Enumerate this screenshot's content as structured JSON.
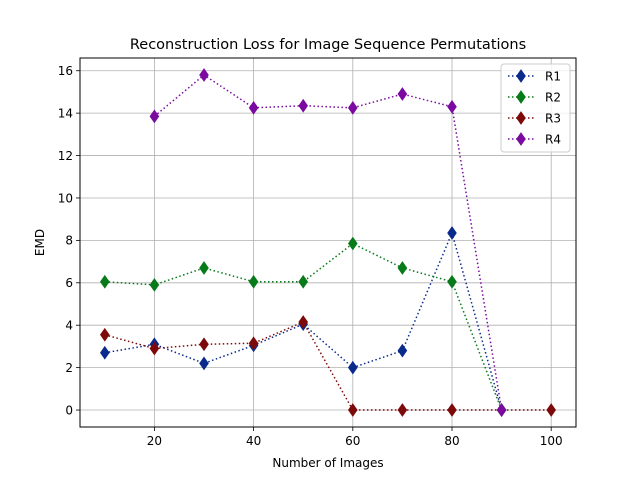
{
  "chart_data": {
    "type": "line",
    "title": "Reconstruction Loss for Image Sequence Permutations",
    "xlabel": "Number of Images",
    "ylabel": "EMD",
    "xlim": [
      5,
      105
    ],
    "ylim": [
      -0.8,
      16.6
    ],
    "xticks": [
      20,
      40,
      60,
      80,
      100
    ],
    "yticks": [
      0,
      2,
      4,
      6,
      8,
      10,
      12,
      14,
      16
    ],
    "grid": true,
    "legend": "top-right",
    "marker": "diamond",
    "linestyle": "dotted",
    "series": [
      {
        "name": "R1",
        "color": "#0b2b8c",
        "x": [
          10,
          20,
          30,
          40,
          50,
          60,
          70,
          80,
          90
        ],
        "y": [
          2.7,
          3.1,
          2.2,
          3.05,
          4.05,
          2.0,
          2.8,
          8.35,
          0.0
        ]
      },
      {
        "name": "R2",
        "color": "#077a1a",
        "x": [
          10,
          20,
          30,
          40,
          50,
          60,
          70,
          80,
          90
        ],
        "y": [
          6.05,
          5.9,
          6.7,
          6.05,
          6.05,
          7.85,
          6.7,
          6.05,
          0.0
        ]
      },
      {
        "name": "R3",
        "color": "#7d0a0a",
        "x": [
          10,
          20,
          30,
          40,
          50,
          60,
          70,
          80,
          90,
          100
        ],
        "y": [
          3.55,
          2.9,
          3.1,
          3.15,
          4.15,
          0.0,
          0.0,
          0.0,
          0.0,
          0.0
        ]
      },
      {
        "name": "R4",
        "color": "#7a0aa0",
        "x": [
          20,
          30,
          40,
          50,
          60,
          70,
          80,
          90
        ],
        "y": [
          13.85,
          15.8,
          14.25,
          14.35,
          14.25,
          14.9,
          14.3,
          0.0
        ]
      }
    ]
  }
}
